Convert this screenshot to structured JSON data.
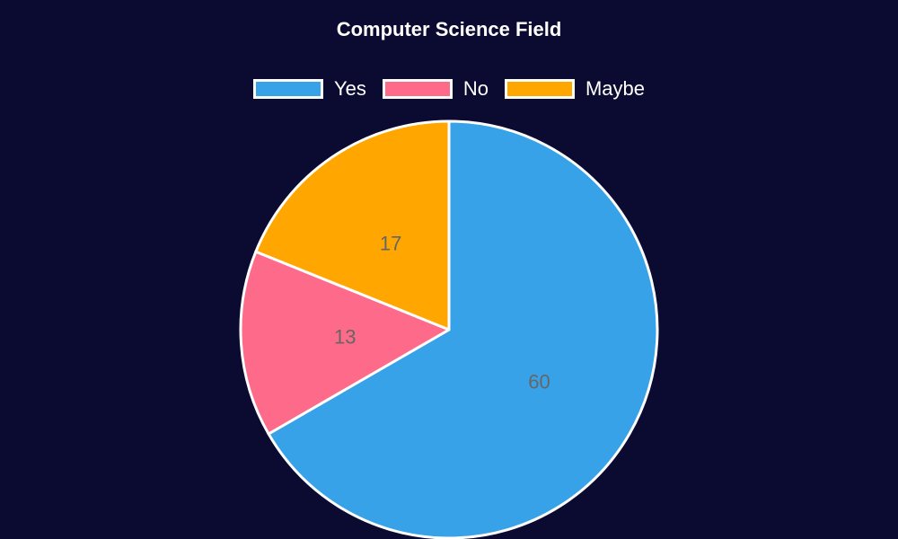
{
  "chart_data": {
    "type": "pie",
    "title": "Computer Science Field",
    "categories": [
      "Yes",
      "No",
      "Maybe"
    ],
    "values": [
      60,
      13,
      17
    ],
    "colors": [
      "#38a2e8",
      "#fe6a8a",
      "#ffa600"
    ],
    "legend_position": "top",
    "background": "#0b0a30",
    "label_color": "#666666"
  }
}
